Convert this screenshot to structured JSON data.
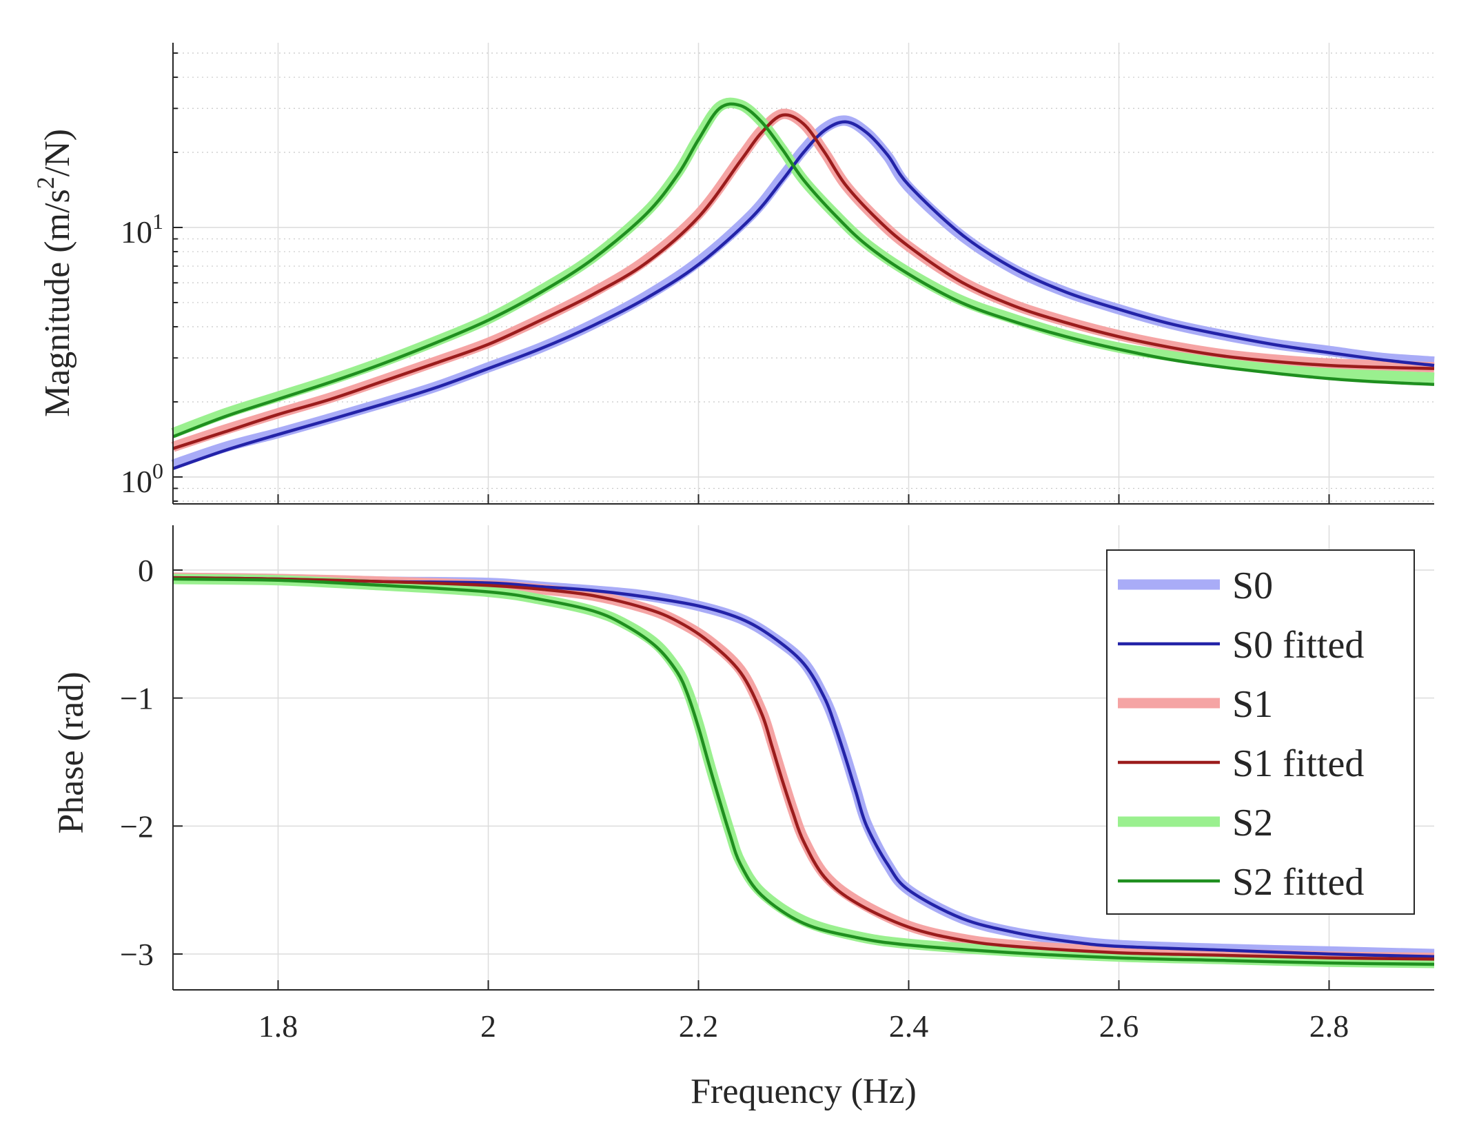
{
  "chart_data": [
    {
      "id": "magnitude",
      "type": "line",
      "ylabel_main": "Magnitude (m/s",
      "ylabel_sup": "2",
      "ylabel_end": "/N)",
      "yscale": "log",
      "ylim": [
        0.78,
        55
      ],
      "xlim": [
        1.7,
        2.9
      ],
      "xticks": [
        1.8,
        2.0,
        2.2,
        2.4,
        2.6,
        2.8
      ],
      "yticks": [
        {
          "value": 1,
          "base": "10",
          "exp": "0"
        },
        {
          "value": 10,
          "base": "10",
          "exp": "1"
        }
      ],
      "grid": true,
      "series": [
        {
          "name": "S0",
          "color": "#a9acf7",
          "style": "measured",
          "x": [
            1.7,
            1.75,
            1.8,
            1.85,
            1.9,
            1.95,
            2.0,
            2.05,
            2.1,
            2.15,
            2.2,
            2.25,
            2.28,
            2.3,
            2.32,
            2.34,
            2.36,
            2.38,
            2.4,
            2.45,
            2.5,
            2.55,
            2.6,
            2.65,
            2.7,
            2.75,
            2.8,
            2.85,
            2.9
          ],
          "y": [
            1.12,
            1.32,
            1.5,
            1.72,
            1.98,
            2.3,
            2.75,
            3.3,
            4.1,
            5.3,
            7.3,
            11.2,
            16,
            20.5,
            25,
            26.8,
            24,
            19.3,
            14.5,
            9.3,
            6.8,
            5.5,
            4.7,
            4.1,
            3.7,
            3.4,
            3.2,
            3.0,
            2.9
          ]
        },
        {
          "name": "S0 fitted",
          "color": "#2323a8",
          "style": "fitted",
          "x": [
            1.7,
            1.75,
            1.8,
            1.85,
            1.9,
            1.95,
            2.0,
            2.05,
            2.1,
            2.15,
            2.2,
            2.25,
            2.28,
            2.3,
            2.32,
            2.34,
            2.36,
            2.38,
            2.4,
            2.45,
            2.5,
            2.55,
            2.6,
            2.65,
            2.7,
            2.75,
            2.8,
            2.85,
            2.9
          ],
          "y": [
            1.08,
            1.28,
            1.48,
            1.7,
            1.96,
            2.28,
            2.72,
            3.27,
            4.05,
            5.2,
            7.1,
            10.9,
            15.5,
            20,
            24.5,
            26.5,
            24,
            19.5,
            14.8,
            9.4,
            6.85,
            5.5,
            4.7,
            4.1,
            3.7,
            3.38,
            3.15,
            2.95,
            2.8
          ]
        },
        {
          "name": "S1",
          "color": "#f5a4a4",
          "style": "measured",
          "x": [
            1.7,
            1.75,
            1.8,
            1.85,
            1.9,
            1.95,
            2.0,
            2.05,
            2.1,
            2.15,
            2.2,
            2.24,
            2.26,
            2.28,
            2.3,
            2.32,
            2.34,
            2.37,
            2.4,
            2.45,
            2.5,
            2.55,
            2.6,
            2.65,
            2.7,
            2.75,
            2.8,
            2.85,
            2.9
          ],
          "y": [
            1.32,
            1.55,
            1.8,
            2.08,
            2.45,
            2.9,
            3.45,
            4.3,
            5.5,
            7.4,
            11.3,
            19,
            24.5,
            28.5,
            26,
            20,
            14.8,
            10.8,
            8.4,
            6.1,
            4.9,
            4.2,
            3.7,
            3.35,
            3.1,
            2.95,
            2.85,
            2.8,
            2.75
          ]
        },
        {
          "name": "S1 fitted",
          "color": "#9b1c1c",
          "style": "fitted",
          "x": [
            1.7,
            1.75,
            1.8,
            1.85,
            1.9,
            1.95,
            2.0,
            2.05,
            2.1,
            2.15,
            2.2,
            2.24,
            2.26,
            2.28,
            2.3,
            2.32,
            2.34,
            2.37,
            2.4,
            2.45,
            2.5,
            2.55,
            2.6,
            2.65,
            2.7,
            2.75,
            2.8,
            2.85,
            2.9
          ],
          "y": [
            1.3,
            1.52,
            1.78,
            2.05,
            2.42,
            2.86,
            3.4,
            4.25,
            5.4,
            7.2,
            11,
            18.5,
            24,
            28.2,
            26,
            20,
            14.8,
            10.8,
            8.4,
            6.05,
            4.85,
            4.15,
            3.65,
            3.3,
            3.05,
            2.9,
            2.8,
            2.75,
            2.72
          ]
        },
        {
          "name": "S2",
          "color": "#9af08f",
          "style": "measured",
          "x": [
            1.7,
            1.75,
            1.8,
            1.85,
            1.9,
            1.95,
            2.0,
            2.05,
            2.1,
            2.15,
            2.18,
            2.2,
            2.22,
            2.24,
            2.26,
            2.28,
            2.3,
            2.33,
            2.36,
            2.4,
            2.45,
            2.5,
            2.55,
            2.6,
            2.65,
            2.7,
            2.75,
            2.8,
            2.85,
            2.9
          ],
          "y": [
            1.5,
            1.8,
            2.1,
            2.45,
            2.9,
            3.5,
            4.3,
            5.6,
            7.6,
            11.5,
            16.5,
            23,
            30.5,
            31,
            26.5,
            20.5,
            15.5,
            11.3,
            8.6,
            6.6,
            5.1,
            4.3,
            3.7,
            3.3,
            3.05,
            2.85,
            2.7,
            2.6,
            2.55,
            2.5
          ]
        },
        {
          "name": "S2 fitted",
          "color": "#1f8f1f",
          "style": "fitted",
          "x": [
            1.7,
            1.75,
            1.8,
            1.85,
            1.9,
            1.95,
            2.0,
            2.05,
            2.1,
            2.15,
            2.18,
            2.2,
            2.22,
            2.24,
            2.26,
            2.28,
            2.3,
            2.33,
            2.36,
            2.4,
            2.45,
            2.5,
            2.55,
            2.6,
            2.65,
            2.7,
            2.75,
            2.8,
            2.85,
            2.9
          ],
          "y": [
            1.45,
            1.75,
            2.05,
            2.4,
            2.85,
            3.45,
            4.25,
            5.5,
            7.5,
            11.3,
            16.2,
            22.5,
            30,
            30.8,
            26.5,
            20.5,
            15.5,
            11.2,
            8.5,
            6.5,
            5.0,
            4.2,
            3.65,
            3.25,
            2.95,
            2.75,
            2.6,
            2.48,
            2.4,
            2.35
          ]
        }
      ]
    },
    {
      "id": "phase",
      "type": "line",
      "ylabel": "Phase (rad)",
      "xlabel": "Frequency (Hz)",
      "ylim": [
        -3.28,
        0.35
      ],
      "xlim": [
        1.7,
        2.9
      ],
      "xticks": [
        1.8,
        2.0,
        2.2,
        2.4,
        2.6,
        2.8
      ],
      "xticklabels": [
        "1.8",
        "2",
        "2.2",
        "2.4",
        "2.6",
        "2.8"
      ],
      "yticks": [
        0,
        -1,
        -2,
        -3
      ],
      "yticklabels": [
        "0",
        "−1",
        "−2",
        "−3"
      ],
      "grid": true,
      "legend_position": "top-right",
      "series": [
        {
          "name": "S0",
          "color": "#a9acf7",
          "style": "measured",
          "x": [
            1.7,
            1.8,
            1.9,
            2.0,
            2.05,
            2.1,
            2.15,
            2.2,
            2.24,
            2.27,
            2.3,
            2.32,
            2.33,
            2.34,
            2.35,
            2.36,
            2.38,
            2.4,
            2.45,
            2.5,
            2.55,
            2.6,
            2.7,
            2.8,
            2.9
          ],
          "y": [
            -0.06,
            -0.07,
            -0.09,
            -0.1,
            -0.13,
            -0.16,
            -0.2,
            -0.28,
            -0.38,
            -0.52,
            -0.72,
            -1.0,
            -1.2,
            -1.45,
            -1.72,
            -1.98,
            -2.3,
            -2.5,
            -2.72,
            -2.83,
            -2.89,
            -2.93,
            -2.96,
            -2.98,
            -3.0
          ]
        },
        {
          "name": "S0 fitted",
          "color": "#2323a8",
          "style": "fitted",
          "x": [
            1.7,
            1.8,
            1.9,
            2.0,
            2.05,
            2.1,
            2.15,
            2.2,
            2.24,
            2.27,
            2.3,
            2.32,
            2.33,
            2.34,
            2.35,
            2.36,
            2.38,
            2.4,
            2.45,
            2.5,
            2.55,
            2.6,
            2.7,
            2.8,
            2.9
          ],
          "y": [
            -0.06,
            -0.07,
            -0.09,
            -0.1,
            -0.13,
            -0.16,
            -0.21,
            -0.28,
            -0.38,
            -0.52,
            -0.73,
            -1.0,
            -1.22,
            -1.47,
            -1.74,
            -2.0,
            -2.3,
            -2.5,
            -2.72,
            -2.83,
            -2.9,
            -2.94,
            -2.97,
            -3.0,
            -3.02
          ]
        },
        {
          "name": "S1",
          "color": "#f5a4a4",
          "style": "measured",
          "x": [
            1.7,
            1.8,
            1.9,
            2.0,
            2.05,
            2.1,
            2.15,
            2.18,
            2.21,
            2.24,
            2.26,
            2.27,
            2.28,
            2.29,
            2.3,
            2.32,
            2.35,
            2.4,
            2.45,
            2.5,
            2.6,
            2.7,
            2.8,
            2.9
          ],
          "y": [
            -0.06,
            -0.07,
            -0.09,
            -0.12,
            -0.15,
            -0.2,
            -0.3,
            -0.4,
            -0.55,
            -0.78,
            -1.1,
            -1.35,
            -1.62,
            -1.88,
            -2.1,
            -2.38,
            -2.58,
            -2.78,
            -2.88,
            -2.93,
            -2.98,
            -3.0,
            -3.02,
            -3.03
          ]
        },
        {
          "name": "S1 fitted",
          "color": "#9b1c1c",
          "style": "fitted",
          "x": [
            1.7,
            1.8,
            1.9,
            2.0,
            2.05,
            2.1,
            2.15,
            2.18,
            2.21,
            2.24,
            2.26,
            2.27,
            2.28,
            2.29,
            2.3,
            2.32,
            2.35,
            2.4,
            2.45,
            2.5,
            2.6,
            2.7,
            2.8,
            2.9
          ],
          "y": [
            -0.06,
            -0.07,
            -0.09,
            -0.12,
            -0.15,
            -0.2,
            -0.3,
            -0.4,
            -0.56,
            -0.8,
            -1.12,
            -1.38,
            -1.65,
            -1.9,
            -2.12,
            -2.4,
            -2.6,
            -2.79,
            -2.89,
            -2.94,
            -2.99,
            -3.01,
            -3.03,
            -3.04
          ]
        },
        {
          "name": "S2",
          "color": "#9af08f",
          "style": "measured",
          "x": [
            1.7,
            1.8,
            1.9,
            2.0,
            2.05,
            2.1,
            2.13,
            2.16,
            2.18,
            2.19,
            2.2,
            2.21,
            2.22,
            2.23,
            2.24,
            2.26,
            2.3,
            2.35,
            2.4,
            2.5,
            2.6,
            2.7,
            2.8,
            2.9
          ],
          "y": [
            -0.07,
            -0.08,
            -0.12,
            -0.17,
            -0.23,
            -0.32,
            -0.42,
            -0.58,
            -0.78,
            -0.95,
            -1.2,
            -1.5,
            -1.78,
            -2.05,
            -2.28,
            -2.52,
            -2.74,
            -2.86,
            -2.92,
            -2.98,
            -3.02,
            -3.04,
            -3.06,
            -3.07
          ]
        },
        {
          "name": "S2 fitted",
          "color": "#1f8f1f",
          "style": "fitted",
          "x": [
            1.7,
            1.8,
            1.9,
            2.0,
            2.05,
            2.1,
            2.13,
            2.16,
            2.18,
            2.19,
            2.2,
            2.21,
            2.22,
            2.23,
            2.24,
            2.26,
            2.3,
            2.35,
            2.4,
            2.5,
            2.6,
            2.7,
            2.8,
            2.9
          ],
          "y": [
            -0.07,
            -0.08,
            -0.12,
            -0.17,
            -0.23,
            -0.32,
            -0.43,
            -0.6,
            -0.8,
            -0.98,
            -1.23,
            -1.52,
            -1.8,
            -2.07,
            -2.3,
            -2.54,
            -2.76,
            -2.87,
            -2.93,
            -2.99,
            -3.03,
            -3.05,
            -3.07,
            -3.08
          ]
        }
      ]
    }
  ],
  "legend": [
    {
      "label": "S0",
      "color": "#a9acf7",
      "style": "measured"
    },
    {
      "label": "S0 fitted",
      "color": "#2323a8",
      "style": "fitted"
    },
    {
      "label": "S1",
      "color": "#f5a4a4",
      "style": "measured"
    },
    {
      "label": "S1 fitted",
      "color": "#9b1c1c",
      "style": "fitted"
    },
    {
      "label": "S2",
      "color": "#9af08f",
      "style": "measured"
    },
    {
      "label": "S2 fitted",
      "color": "#1f8f1f",
      "style": "fitted"
    }
  ]
}
